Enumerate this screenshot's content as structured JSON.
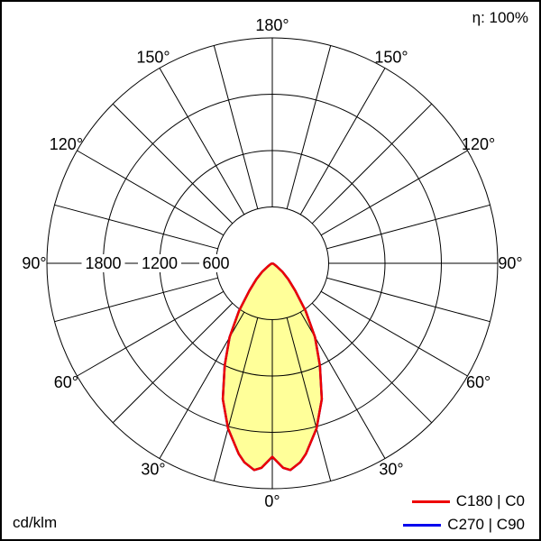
{
  "header": {
    "efficiency_label": "η: 100%"
  },
  "footer": {
    "unit_label": "cd/klm"
  },
  "legend": {
    "items": [
      {
        "label": "C180 | C0",
        "color": "#ee0000"
      },
      {
        "label": "C270 | C90",
        "color": "#0000ee"
      }
    ]
  },
  "chart_data": {
    "type": "polar",
    "subtype": "luminous-intensity-distribution",
    "title": "",
    "unit": "cd/klm",
    "efficiency_percent": 100,
    "grid": {
      "angle_step_deg": 15,
      "ring_values": [
        600,
        1200,
        1800,
        2400
      ],
      "labeled_rings": [
        600,
        1200,
        1800
      ],
      "inner_radius_value": 600,
      "grid_color": "#000000"
    },
    "angle_labels": [
      {
        "gamma_deg": 180,
        "text": "180°"
      },
      {
        "gamma_deg": 150,
        "text": "150°"
      },
      {
        "gamma_deg": 120,
        "text": "120°"
      },
      {
        "gamma_deg": 90,
        "text": "90°"
      },
      {
        "gamma_deg": 60,
        "text": "60°"
      },
      {
        "gamma_deg": 30,
        "text": "30°"
      },
      {
        "gamma_deg": 0,
        "text": "0°"
      }
    ],
    "series": [
      {
        "name": "C270 | C90",
        "color": "#0000ee",
        "fill": "none",
        "symmetric": true,
        "gamma_deg": [
          0,
          3,
          5,
          8,
          10,
          15,
          20,
          25,
          30,
          35,
          40,
          45,
          50,
          55,
          60,
          65,
          70,
          75,
          80,
          85,
          90
        ],
        "values": [
          2060,
          2180,
          2210,
          2140,
          2060,
          1820,
          1540,
          1200,
          910,
          620,
          380,
          240,
          140,
          60,
          25,
          10,
          5,
          0,
          0,
          0,
          0
        ]
      },
      {
        "name": "C180 | C0",
        "color": "#ee0000",
        "fill": "#ffff99",
        "symmetric": true,
        "gamma_deg": [
          0,
          3,
          5,
          8,
          10,
          15,
          20,
          25,
          30,
          35,
          40,
          45,
          50,
          55,
          60,
          65,
          70,
          75,
          80,
          85,
          90
        ],
        "values": [
          2060,
          2180,
          2210,
          2140,
          2060,
          1820,
          1540,
          1200,
          910,
          620,
          380,
          240,
          140,
          60,
          25,
          10,
          5,
          0,
          0,
          0,
          0
        ]
      }
    ]
  }
}
